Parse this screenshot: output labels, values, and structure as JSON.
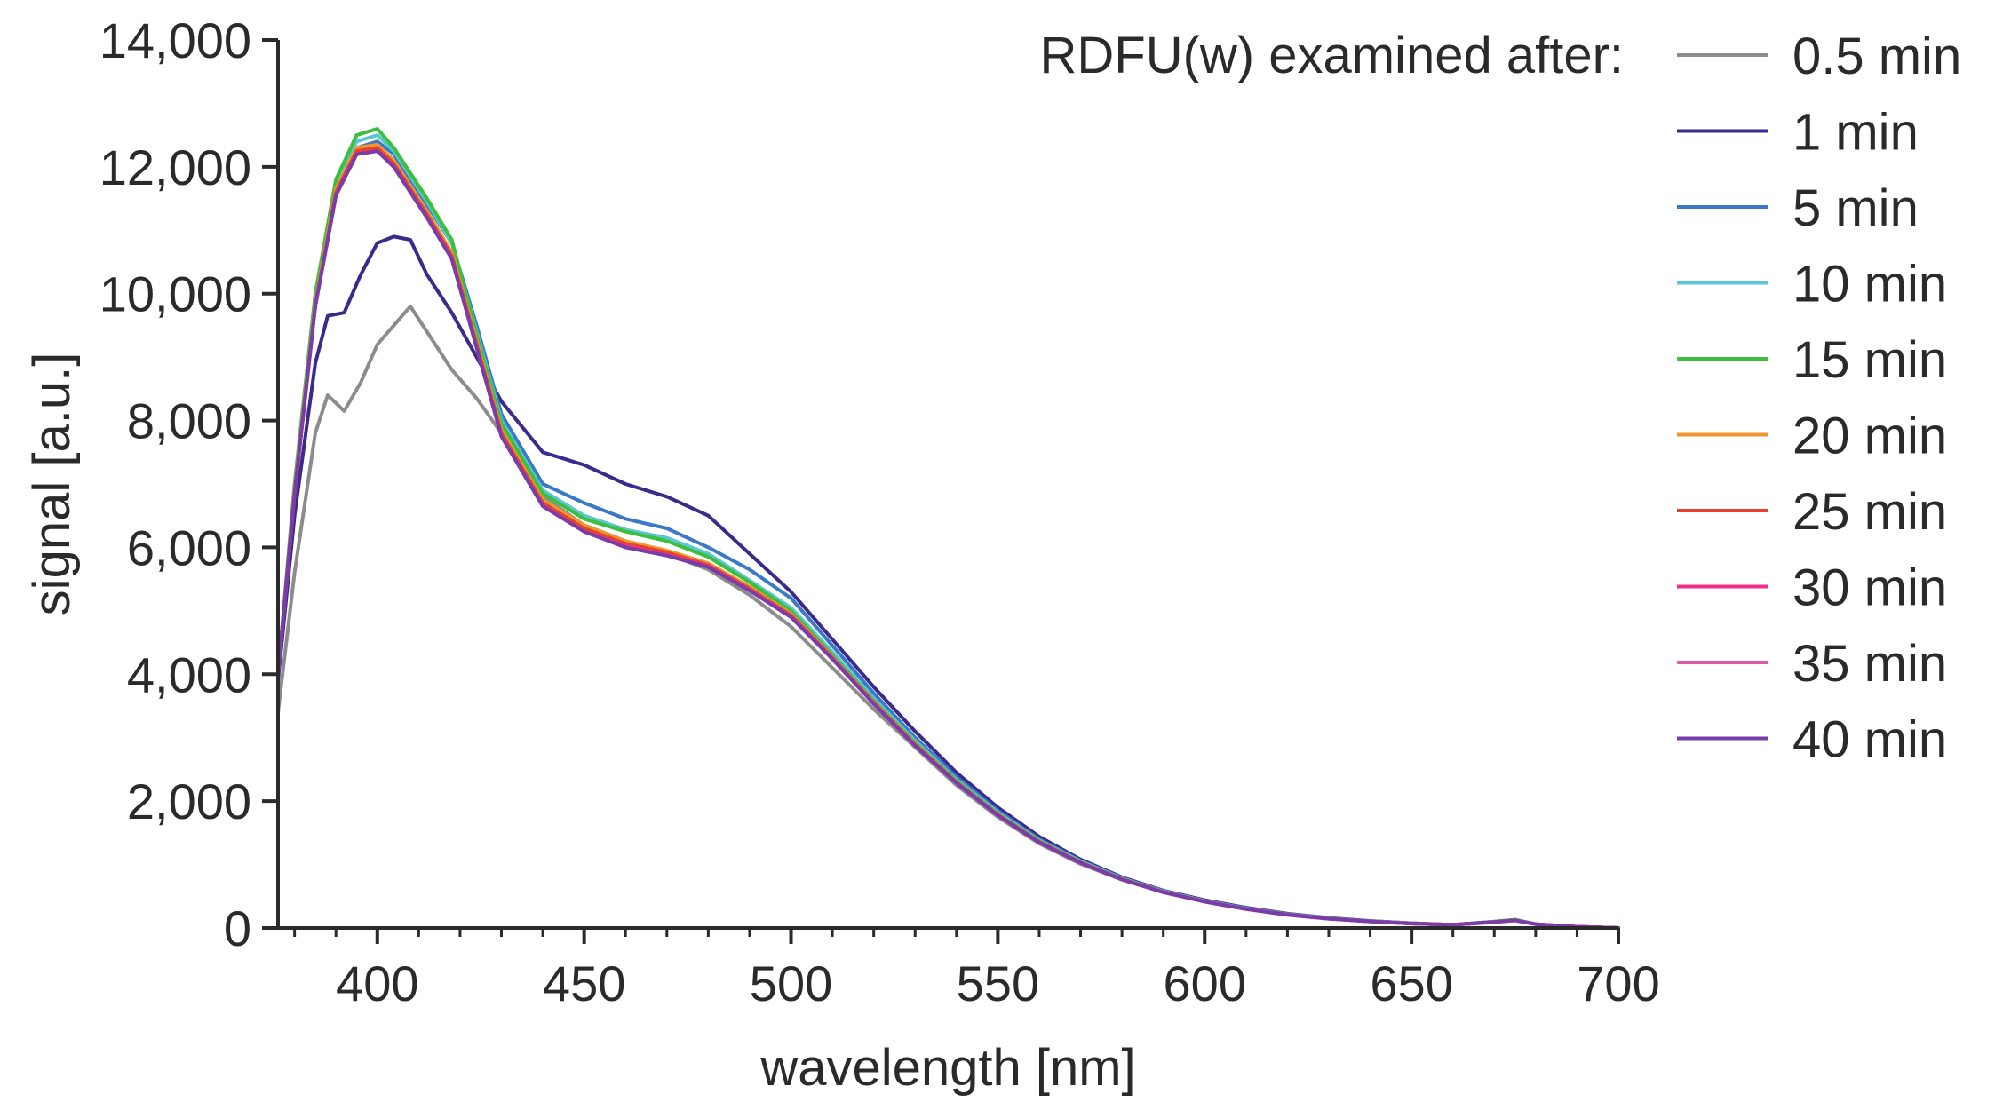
{
  "chart_data": {
    "type": "line",
    "title": "",
    "xlabel": "wavelength [nm]",
    "ylabel": "signal [a.u.]",
    "xlim": [
      376,
      700
    ],
    "ylim": [
      0,
      14000
    ],
    "x_ticks": [
      400,
      450,
      500,
      550,
      600,
      650,
      700
    ],
    "x_tick_labels": [
      "400",
      "450",
      "500",
      "550",
      "600",
      "650",
      "700"
    ],
    "y_ticks": [
      0,
      2000,
      4000,
      6000,
      8000,
      10000,
      12000,
      14000
    ],
    "y_tick_labels": [
      "0",
      "2,000",
      "4,000",
      "6,000",
      "8,000",
      "10,000",
      "12,000",
      "14,000"
    ],
    "grid": false,
    "legend_title": "RDFU(w) examined after:",
    "legend_position": "top-right",
    "series": [
      {
        "name": "0.5 min",
        "color": "#8c8c8c",
        "x": [
          376,
          380,
          385,
          388,
          392,
          396,
          400,
          404,
          408,
          412,
          418,
          424,
          430,
          440,
          450,
          460,
          470,
          480,
          490,
          500,
          510,
          520,
          530,
          540,
          550,
          560,
          570,
          580,
          590,
          600,
          610,
          620,
          630,
          640,
          650,
          660,
          670,
          675,
          680,
          690,
          700
        ],
        "y": [
          3400,
          5600,
          7800,
          8400,
          8150,
          8600,
          9200,
          9500,
          9800,
          9400,
          8800,
          8350,
          7800,
          6800,
          6350,
          6100,
          5900,
          5650,
          5250,
          4750,
          4100,
          3450,
          2850,
          2250,
          1750,
          1330,
          1010,
          760,
          560,
          420,
          300,
          210,
          150,
          105,
          70,
          50,
          90,
          120,
          60,
          20,
          0
        ]
      },
      {
        "name": "1 min",
        "color": "#3b2a8c",
        "x": [
          376,
          380,
          385,
          388,
          392,
          396,
          400,
          404,
          408,
          412,
          418,
          424,
          430,
          440,
          450,
          460,
          470,
          480,
          490,
          500,
          510,
          520,
          530,
          540,
          550,
          560,
          570,
          580,
          590,
          600,
          610,
          620,
          630,
          640,
          650,
          660,
          670,
          675,
          680,
          690,
          700
        ],
        "y": [
          3900,
          6500,
          8900,
          9650,
          9700,
          10300,
          10800,
          10900,
          10850,
          10300,
          9700,
          9000,
          8300,
          7500,
          7300,
          7000,
          6800,
          6500,
          5900,
          5300,
          4550,
          3800,
          3100,
          2450,
          1900,
          1440,
          1080,
          800,
          590,
          440,
          320,
          225,
          160,
          110,
          75,
          50,
          100,
          130,
          60,
          20,
          0
        ]
      },
      {
        "name": "5 min",
        "color": "#3a78c8",
        "x": [
          376,
          380,
          385,
          390,
          395,
          400,
          404,
          408,
          412,
          418,
          424,
          430,
          440,
          450,
          460,
          470,
          480,
          490,
          500,
          510,
          520,
          530,
          540,
          550,
          560,
          570,
          580,
          590,
          600,
          610,
          620,
          630,
          640,
          650,
          660,
          670,
          675,
          680,
          690,
          700
        ],
        "y": [
          4000,
          6900,
          9800,
          11600,
          12300,
          12400,
          12200,
          11800,
          11400,
          10800,
          9500,
          8100,
          7000,
          6700,
          6450,
          6300,
          6000,
          5650,
          5200,
          4450,
          3700,
          3000,
          2380,
          1850,
          1400,
          1060,
          790,
          580,
          430,
          310,
          220,
          155,
          110,
          75,
          50,
          100,
          130,
          60,
          20,
          0
        ]
      },
      {
        "name": "10 min",
        "color": "#5ac8d2",
        "x": [
          376,
          380,
          385,
          390,
          395,
          400,
          404,
          408,
          412,
          418,
          424,
          430,
          440,
          450,
          460,
          470,
          480,
          490,
          500,
          510,
          520,
          530,
          540,
          550,
          560,
          570,
          580,
          590,
          600,
          610,
          620,
          630,
          640,
          650,
          660,
          670,
          675,
          680,
          690,
          700
        ],
        "y": [
          4000,
          6900,
          9900,
          11700,
          12400,
          12500,
          12250,
          11850,
          11450,
          10800,
          9400,
          8000,
          6900,
          6500,
          6280,
          6150,
          5900,
          5480,
          5050,
          4350,
          3620,
          2950,
          2340,
          1820,
          1380,
          1050,
          780,
          575,
          425,
          305,
          215,
          150,
          105,
          72,
          50,
          100,
          130,
          60,
          20,
          0
        ]
      },
      {
        "name": "15 min",
        "color": "#3cbf3c",
        "x": [
          376,
          380,
          385,
          390,
          395,
          400,
          404,
          408,
          412,
          418,
          424,
          430,
          440,
          450,
          460,
          470,
          480,
          490,
          500,
          510,
          520,
          530,
          540,
          550,
          560,
          570,
          580,
          590,
          600,
          610,
          620,
          630,
          640,
          650,
          660,
          670,
          675,
          680,
          690,
          700
        ],
        "y": [
          4000,
          7000,
          10000,
          11800,
          12500,
          12600,
          12300,
          11900,
          11500,
          10850,
          9350,
          7950,
          6850,
          6450,
          6250,
          6100,
          5850,
          5450,
          5000,
          4300,
          3580,
          2920,
          2320,
          1800,
          1370,
          1040,
          775,
          570,
          420,
          300,
          212,
          148,
          104,
          71,
          50,
          100,
          130,
          60,
          20,
          0
        ]
      },
      {
        "name": "20 min",
        "color": "#f0962d",
        "x": [
          376,
          380,
          385,
          390,
          395,
          400,
          404,
          408,
          412,
          418,
          424,
          430,
          440,
          450,
          460,
          470,
          480,
          490,
          500,
          510,
          520,
          530,
          540,
          550,
          560,
          570,
          580,
          590,
          600,
          610,
          620,
          630,
          640,
          650,
          660,
          670,
          675,
          680,
          690,
          700
        ],
        "y": [
          4000,
          6900,
          9850,
          11650,
          12300,
          12350,
          12100,
          11700,
          11300,
          10650,
          9250,
          7850,
          6750,
          6350,
          6100,
          5950,
          5750,
          5380,
          4950,
          4270,
          3560,
          2900,
          2300,
          1790,
          1360,
          1035,
          770,
          568,
          418,
          300,
          210,
          148,
          104,
          71,
          50,
          95,
          120,
          60,
          20,
          0
        ]
      },
      {
        "name": "25 min",
        "color": "#e8412d",
        "x": [
          376,
          380,
          385,
          390,
          395,
          400,
          404,
          408,
          412,
          418,
          424,
          430,
          440,
          450,
          460,
          470,
          480,
          490,
          500,
          510,
          520,
          530,
          540,
          550,
          560,
          570,
          580,
          590,
          600,
          610,
          620,
          630,
          640,
          650,
          660,
          670,
          675,
          680,
          690,
          700
        ],
        "y": [
          4000,
          6850,
          9800,
          11600,
          12250,
          12300,
          12050,
          11650,
          11250,
          10600,
          9200,
          7800,
          6700,
          6300,
          6060,
          5920,
          5720,
          5350,
          4930,
          4260,
          3550,
          2890,
          2295,
          1785,
          1355,
          1030,
          768,
          566,
          417,
          299,
          210,
          147,
          103,
          70,
          50,
          95,
          120,
          60,
          20,
          0
        ]
      },
      {
        "name": "30 min",
        "color": "#ee2f8c",
        "x": [
          376,
          380,
          385,
          390,
          395,
          400,
          404,
          408,
          412,
          418,
          424,
          430,
          440,
          450,
          460,
          470,
          480,
          490,
          500,
          510,
          520,
          530,
          540,
          550,
          560,
          570,
          580,
          590,
          600,
          610,
          620,
          630,
          640,
          650,
          660,
          670,
          675,
          680,
          690,
          700
        ],
        "y": [
          4000,
          6850,
          9800,
          11550,
          12200,
          12250,
          12000,
          11600,
          11200,
          10550,
          9150,
          7750,
          6650,
          6250,
          6020,
          5880,
          5700,
          5330,
          4910,
          4250,
          3540,
          2880,
          2290,
          1780,
          1350,
          1028,
          766,
          565,
          416,
          298,
          209,
          147,
          103,
          70,
          50,
          95,
          120,
          60,
          20,
          0
        ]
      },
      {
        "name": "35 min",
        "color": "#dc5aa8",
        "x": [
          376,
          380,
          385,
          390,
          395,
          400,
          404,
          408,
          412,
          418,
          424,
          430,
          440,
          450,
          460,
          470,
          480,
          490,
          500,
          510,
          520,
          530,
          540,
          550,
          560,
          570,
          580,
          590,
          600,
          610,
          620,
          630,
          640,
          650,
          660,
          670,
          675,
          680,
          690,
          700
        ],
        "y": [
          4000,
          6850,
          9800,
          11550,
          12200,
          12250,
          12000,
          11600,
          11200,
          10550,
          9150,
          7750,
          6650,
          6250,
          6000,
          5870,
          5690,
          5320,
          4900,
          4240,
          3535,
          2875,
          2288,
          1778,
          1350,
          1027,
          765,
          564,
          415,
          298,
          209,
          146,
          103,
          70,
          50,
          95,
          120,
          60,
          20,
          0
        ]
      },
      {
        "name": "40 min",
        "color": "#7a3ca8",
        "x": [
          376,
          380,
          385,
          390,
          395,
          400,
          404,
          408,
          412,
          418,
          424,
          430,
          440,
          450,
          460,
          470,
          480,
          490,
          500,
          510,
          520,
          530,
          540,
          550,
          560,
          570,
          580,
          590,
          600,
          610,
          620,
          630,
          640,
          650,
          660,
          670,
          675,
          680,
          690,
          700
        ],
        "y": [
          4000,
          6850,
          9800,
          11550,
          12200,
          12250,
          12000,
          11600,
          11200,
          10550,
          9150,
          7750,
          6650,
          6250,
          6000,
          5870,
          5690,
          5320,
          4900,
          4240,
          3535,
          2875,
          2288,
          1778,
          1350,
          1027,
          765,
          564,
          415,
          298,
          209,
          146,
          103,
          70,
          50,
          95,
          120,
          60,
          20,
          0
        ]
      }
    ]
  }
}
